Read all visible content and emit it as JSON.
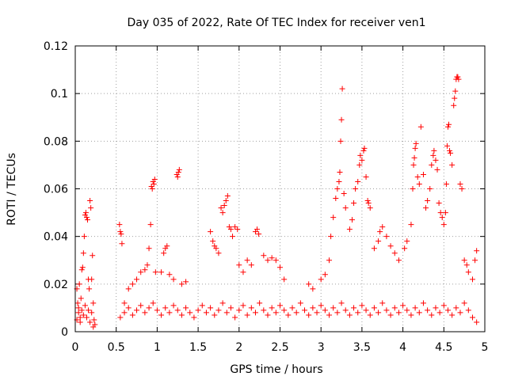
{
  "chart_data": {
    "type": "scatter",
    "title": "Day 035 of 2022, Rate Of TEC Index for receiver ven1",
    "xlabel": "GPS time / hours",
    "ylabel": "ROTI / TECUs",
    "xlim": [
      0,
      5
    ],
    "ylim": [
      0,
      0.12
    ],
    "xticks": [
      0,
      0.5,
      1,
      1.5,
      2,
      2.5,
      3,
      3.5,
      4,
      4.5,
      5
    ],
    "xtick_labels": [
      "0",
      "0.5",
      "1",
      "1.5",
      "2",
      "2.5",
      "3",
      "3.5",
      "4",
      "4.5",
      "5"
    ],
    "yticks": [
      0,
      0.02,
      0.04,
      0.06,
      0.08,
      0.1,
      0.12
    ],
    "ytick_labels": [
      "0",
      "0.02",
      "0.04",
      "0.06",
      "0.08",
      "0.1",
      "0.12"
    ],
    "grid": true,
    "marker": "+",
    "color": "#ff0000",
    "series": [
      {
        "name": "ROTI",
        "points": [
          [
            0.02,
            0.018
          ],
          [
            0.03,
            0.012
          ],
          [
            0.04,
            0.008
          ],
          [
            0.05,
            0.02
          ],
          [
            0.06,
            0.006
          ],
          [
            0.07,
            0.014
          ],
          [
            0.08,
            0.026
          ],
          [
            0.09,
            0.027
          ],
          [
            0.1,
            0.033
          ],
          [
            0.11,
            0.04
          ],
          [
            0.12,
            0.049
          ],
          [
            0.13,
            0.05
          ],
          [
            0.14,
            0.048
          ],
          [
            0.15,
            0.047
          ],
          [
            0.16,
            0.022
          ],
          [
            0.17,
            0.018
          ],
          [
            0.18,
            0.055
          ],
          [
            0.19,
            0.052
          ],
          [
            0.2,
            0.022
          ],
          [
            0.21,
            0.032
          ],
          [
            0.22,
            0.012
          ],
          [
            0.23,
            0.005
          ],
          [
            0.24,
            0.003
          ],
          [
            0.54,
            0.045
          ],
          [
            0.55,
            0.042
          ],
          [
            0.56,
            0.041
          ],
          [
            0.57,
            0.037
          ],
          [
            0.6,
            0.012
          ],
          [
            0.65,
            0.018
          ],
          [
            0.7,
            0.02
          ],
          [
            0.75,
            0.022
          ],
          [
            0.8,
            0.025
          ],
          [
            0.85,
            0.026
          ],
          [
            0.88,
            0.028
          ],
          [
            0.9,
            0.035
          ],
          [
            0.92,
            0.045
          ],
          [
            0.93,
            0.061
          ],
          [
            0.94,
            0.06
          ],
          [
            0.95,
            0.063
          ],
          [
            0.96,
            0.062
          ],
          [
            0.97,
            0.064
          ],
          [
            0.98,
            0.025
          ],
          [
            1.05,
            0.025
          ],
          [
            1.08,
            0.033
          ],
          [
            1.1,
            0.035
          ],
          [
            1.12,
            0.036
          ],
          [
            1.15,
            0.024
          ],
          [
            1.2,
            0.022
          ],
          [
            1.24,
            0.066
          ],
          [
            1.25,
            0.065
          ],
          [
            1.26,
            0.067
          ],
          [
            1.27,
            0.068
          ],
          [
            1.3,
            0.02
          ],
          [
            1.35,
            0.021
          ],
          [
            1.65,
            0.042
          ],
          [
            1.68,
            0.038
          ],
          [
            1.7,
            0.036
          ],
          [
            1.72,
            0.035
          ],
          [
            1.75,
            0.033
          ],
          [
            1.78,
            0.052
          ],
          [
            1.8,
            0.05
          ],
          [
            1.82,
            0.053
          ],
          [
            1.84,
            0.055
          ],
          [
            1.86,
            0.057
          ],
          [
            1.88,
            0.044
          ],
          [
            1.9,
            0.043
          ],
          [
            1.92,
            0.04
          ],
          [
            1.95,
            0.044
          ],
          [
            1.98,
            0.043
          ],
          [
            2.0,
            0.028
          ],
          [
            2.05,
            0.025
          ],
          [
            2.1,
            0.03
          ],
          [
            2.15,
            0.028
          ],
          [
            2.2,
            0.042
          ],
          [
            2.22,
            0.043
          ],
          [
            2.24,
            0.041
          ],
          [
            2.3,
            0.032
          ],
          [
            2.35,
            0.03
          ],
          [
            2.4,
            0.031
          ],
          [
            2.45,
            0.03
          ],
          [
            2.5,
            0.027
          ],
          [
            2.55,
            0.022
          ],
          [
            2.85,
            0.02
          ],
          [
            2.9,
            0.018
          ],
          [
            3.0,
            0.022
          ],
          [
            3.05,
            0.024
          ],
          [
            3.1,
            0.03
          ],
          [
            3.12,
            0.04
          ],
          [
            3.15,
            0.048
          ],
          [
            3.18,
            0.056
          ],
          [
            3.2,
            0.06
          ],
          [
            3.22,
            0.063
          ],
          [
            3.23,
            0.067
          ],
          [
            3.24,
            0.08
          ],
          [
            3.25,
            0.089
          ],
          [
            3.26,
            0.102
          ],
          [
            3.28,
            0.058
          ],
          [
            3.3,
            0.052
          ],
          [
            3.35,
            0.043
          ],
          [
            3.38,
            0.047
          ],
          [
            3.4,
            0.054
          ],
          [
            3.42,
            0.06
          ],
          [
            3.45,
            0.063
          ],
          [
            3.47,
            0.07
          ],
          [
            3.48,
            0.074
          ],
          [
            3.5,
            0.072
          ],
          [
            3.52,
            0.076
          ],
          [
            3.53,
            0.077
          ],
          [
            3.55,
            0.065
          ],
          [
            3.57,
            0.055
          ],
          [
            3.58,
            0.054
          ],
          [
            3.6,
            0.052
          ],
          [
            3.65,
            0.035
          ],
          [
            3.7,
            0.038
          ],
          [
            3.72,
            0.042
          ],
          [
            3.75,
            0.044
          ],
          [
            3.8,
            0.04
          ],
          [
            3.85,
            0.036
          ],
          [
            3.9,
            0.033
          ],
          [
            3.95,
            0.03
          ],
          [
            4.02,
            0.035
          ],
          [
            4.05,
            0.038
          ],
          [
            4.1,
            0.045
          ],
          [
            4.12,
            0.06
          ],
          [
            4.13,
            0.07
          ],
          [
            4.14,
            0.073
          ],
          [
            4.15,
            0.077
          ],
          [
            4.16,
            0.079
          ],
          [
            4.18,
            0.065
          ],
          [
            4.2,
            0.062
          ],
          [
            4.22,
            0.086
          ],
          [
            4.25,
            0.066
          ],
          [
            4.28,
            0.052
          ],
          [
            4.3,
            0.055
          ],
          [
            4.33,
            0.06
          ],
          [
            4.35,
            0.07
          ],
          [
            4.37,
            0.074
          ],
          [
            4.38,
            0.076
          ],
          [
            4.4,
            0.072
          ],
          [
            4.42,
            0.068
          ],
          [
            4.44,
            0.054
          ],
          [
            4.46,
            0.05
          ],
          [
            4.48,
            0.048
          ],
          [
            4.5,
            0.045
          ],
          [
            4.52,
            0.05
          ],
          [
            4.53,
            0.062
          ],
          [
            4.54,
            0.078
          ],
          [
            4.55,
            0.086
          ],
          [
            4.56,
            0.087
          ],
          [
            4.57,
            0.076
          ],
          [
            4.58,
            0.075
          ],
          [
            4.6,
            0.07
          ],
          [
            4.62,
            0.095
          ],
          [
            4.63,
            0.098
          ],
          [
            4.64,
            0.101
          ],
          [
            4.65,
            0.106
          ],
          [
            4.66,
            0.107
          ],
          [
            4.67,
            0.107
          ],
          [
            4.68,
            0.106
          ],
          [
            4.7,
            0.062
          ],
          [
            4.72,
            0.06
          ],
          [
            4.75,
            0.03
          ],
          [
            4.78,
            0.028
          ],
          [
            4.8,
            0.025
          ],
          [
            4.85,
            0.022
          ],
          [
            4.88,
            0.03
          ],
          [
            4.9,
            0.034
          ],
          [
            0.02,
            0.005
          ],
          [
            0.04,
            0.01
          ],
          [
            0.06,
            0.004
          ],
          [
            0.08,
            0.009
          ],
          [
            0.1,
            0.007
          ],
          [
            0.12,
            0.011
          ],
          [
            0.14,
            0.006
          ],
          [
            0.16,
            0.009
          ],
          [
            0.18,
            0.004
          ],
          [
            0.2,
            0.008
          ],
          [
            0.22,
            0.002
          ],
          [
            0.55,
            0.006
          ],
          [
            0.6,
            0.008
          ],
          [
            0.65,
            0.01
          ],
          [
            0.7,
            0.007
          ],
          [
            0.75,
            0.009
          ],
          [
            0.8,
            0.011
          ],
          [
            0.85,
            0.008
          ],
          [
            0.9,
            0.01
          ],
          [
            0.95,
            0.012
          ],
          [
            1.0,
            0.009
          ],
          [
            1.05,
            0.007
          ],
          [
            1.1,
            0.01
          ],
          [
            1.15,
            0.008
          ],
          [
            1.2,
            0.011
          ],
          [
            1.25,
            0.009
          ],
          [
            1.3,
            0.007
          ],
          [
            1.35,
            0.01
          ],
          [
            1.4,
            0.008
          ],
          [
            1.45,
            0.006
          ],
          [
            1.5,
            0.009
          ],
          [
            1.55,
            0.011
          ],
          [
            1.6,
            0.008
          ],
          [
            1.65,
            0.01
          ],
          [
            1.7,
            0.007
          ],
          [
            1.75,
            0.009
          ],
          [
            1.8,
            0.012
          ],
          [
            1.85,
            0.008
          ],
          [
            1.9,
            0.01
          ],
          [
            1.95,
            0.006
          ],
          [
            2.0,
            0.009
          ],
          [
            2.05,
            0.011
          ],
          [
            2.1,
            0.007
          ],
          [
            2.15,
            0.01
          ],
          [
            2.2,
            0.008
          ],
          [
            2.25,
            0.012
          ],
          [
            2.3,
            0.009
          ],
          [
            2.35,
            0.007
          ],
          [
            2.4,
            0.01
          ],
          [
            2.45,
            0.008
          ],
          [
            2.5,
            0.011
          ],
          [
            2.55,
            0.009
          ],
          [
            2.6,
            0.007
          ],
          [
            2.65,
            0.01
          ],
          [
            2.7,
            0.008
          ],
          [
            2.75,
            0.012
          ],
          [
            2.8,
            0.009
          ],
          [
            2.85,
            0.007
          ],
          [
            2.9,
            0.01
          ],
          [
            2.95,
            0.008
          ],
          [
            3.0,
            0.011
          ],
          [
            3.05,
            0.009
          ],
          [
            3.1,
            0.007
          ],
          [
            3.15,
            0.01
          ],
          [
            3.2,
            0.008
          ],
          [
            3.25,
            0.012
          ],
          [
            3.3,
            0.009
          ],
          [
            3.35,
            0.007
          ],
          [
            3.4,
            0.01
          ],
          [
            3.45,
            0.008
          ],
          [
            3.5,
            0.011
          ],
          [
            3.55,
            0.009
          ],
          [
            3.6,
            0.007
          ],
          [
            3.65,
            0.01
          ],
          [
            3.7,
            0.008
          ],
          [
            3.75,
            0.012
          ],
          [
            3.8,
            0.009
          ],
          [
            3.85,
            0.007
          ],
          [
            3.9,
            0.01
          ],
          [
            3.95,
            0.008
          ],
          [
            4.0,
            0.011
          ],
          [
            4.05,
            0.009
          ],
          [
            4.1,
            0.007
          ],
          [
            4.15,
            0.01
          ],
          [
            4.2,
            0.008
          ],
          [
            4.25,
            0.012
          ],
          [
            4.3,
            0.009
          ],
          [
            4.35,
            0.007
          ],
          [
            4.4,
            0.01
          ],
          [
            4.45,
            0.008
          ],
          [
            4.5,
            0.011
          ],
          [
            4.55,
            0.009
          ],
          [
            4.6,
            0.007
          ],
          [
            4.65,
            0.01
          ],
          [
            4.7,
            0.008
          ],
          [
            4.75,
            0.012
          ],
          [
            4.8,
            0.009
          ],
          [
            4.85,
            0.006
          ],
          [
            4.9,
            0.004
          ]
        ]
      }
    ]
  }
}
